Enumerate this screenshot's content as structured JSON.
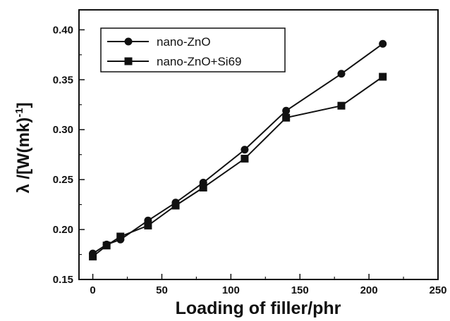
{
  "chart_data": {
    "type": "line",
    "xlabel": "Loading of filler/phr",
    "ylabel": "λ /[W(mk)",
    "ylabel_sup": "-1",
    "ylabel_close": "]",
    "xlim": [
      -10,
      250
    ],
    "ylim": [
      0.15,
      0.42
    ],
    "xticks": [
      0,
      50,
      100,
      150,
      200,
      250
    ],
    "yticks": [
      0.15,
      0.2,
      0.25,
      0.3,
      0.35,
      0.4
    ],
    "ytick_labels": [
      "0.15",
      "0.20",
      "0.25",
      "0.30",
      "0.35",
      "0.40"
    ],
    "grid": false,
    "legend_position": "top-left",
    "series": [
      {
        "name": "nano-ZnO",
        "marker": "circle",
        "color": "#111111",
        "x": [
          0,
          10,
          20,
          40,
          60,
          80,
          110,
          140,
          180,
          210
        ],
        "y": [
          0.176,
          0.185,
          0.19,
          0.209,
          0.227,
          0.247,
          0.28,
          0.319,
          0.356,
          0.386
        ]
      },
      {
        "name": "nano-ZnO+Si69",
        "marker": "square",
        "color": "#111111",
        "x": [
          0,
          10,
          20,
          40,
          60,
          80,
          110,
          140,
          180,
          210
        ],
        "y": [
          0.173,
          0.184,
          0.193,
          0.204,
          0.224,
          0.242,
          0.271,
          0.312,
          0.324,
          0.353
        ]
      }
    ]
  }
}
